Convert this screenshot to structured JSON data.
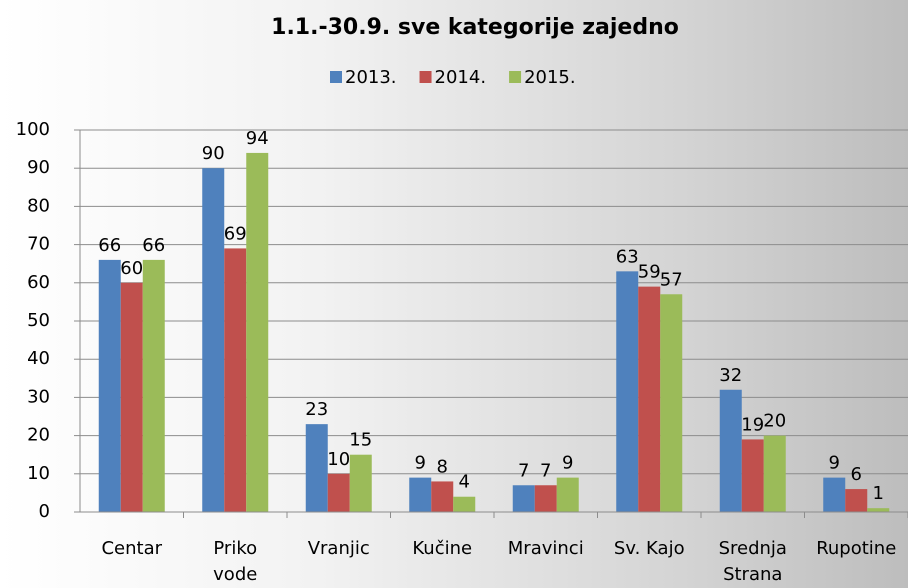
{
  "chart_data": {
    "type": "bar",
    "title": "1.1.-30.9. sve kategorije zajedno",
    "categories": [
      "Centar",
      "Priko vode",
      "Vranjic",
      "Kučine",
      "Mravinci",
      "Sv. Kajo",
      "Srednja Strana",
      "Rupotine"
    ],
    "series": [
      {
        "name": "2013.",
        "color": "#4f81bd",
        "values": [
          66,
          90,
          23,
          9,
          7,
          63,
          32,
          9
        ]
      },
      {
        "name": "2014.",
        "color": "#c0504d",
        "values": [
          60,
          69,
          10,
          8,
          7,
          59,
          19,
          6
        ]
      },
      {
        "name": "2015.",
        "color": "#9bbb59",
        "values": [
          66,
          94,
          15,
          4,
          9,
          57,
          20,
          1
        ]
      }
    ],
    "ylim": [
      0,
      100
    ],
    "yticks": [
      0,
      10,
      20,
      30,
      40,
      50,
      60,
      70,
      80,
      90,
      100
    ],
    "grid": true,
    "legend": "top"
  }
}
